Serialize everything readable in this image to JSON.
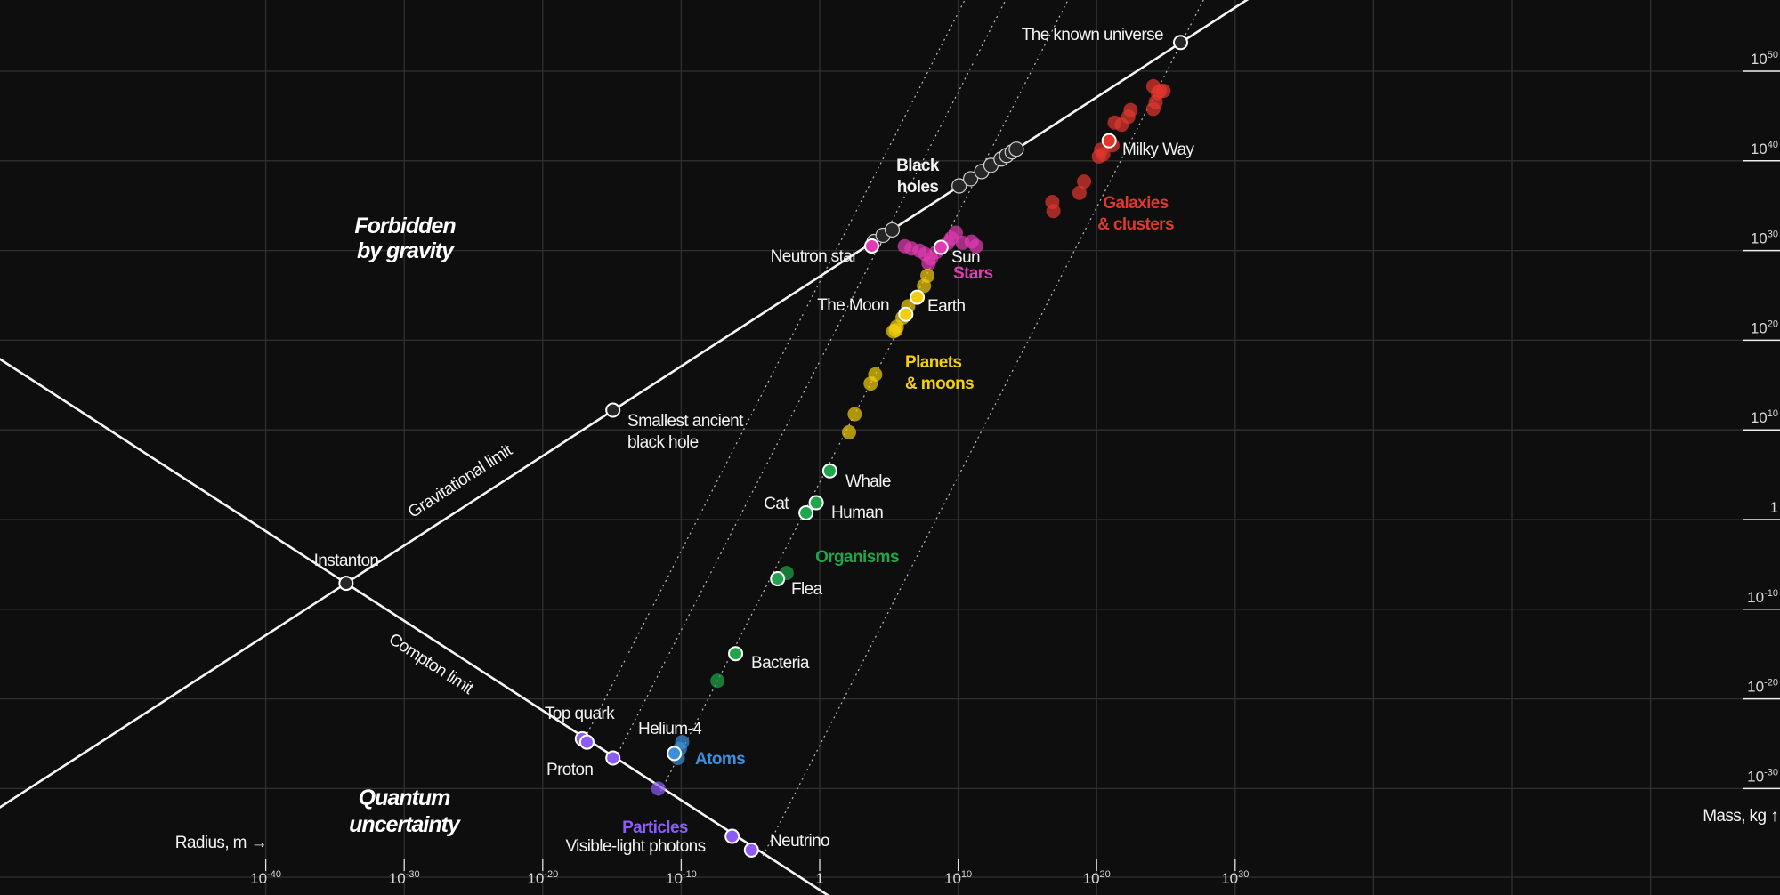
{
  "chart_data": {
    "type": "scatter",
    "scale": "log-log",
    "xlabel": "Radius, m →",
    "ylabel": "Mass, kg ↑",
    "xlim_log10": [
      -59.2,
      69.3
    ],
    "ylim_log10": [
      -42,
      58
    ],
    "grid": true,
    "x_ticks": [
      {
        "base": "10",
        "exp": "-40",
        "v": -40
      },
      {
        "base": "10",
        "exp": "-30",
        "v": -30
      },
      {
        "base": "10",
        "exp": "-20",
        "v": -20
      },
      {
        "base": "10",
        "exp": "-10",
        "v": -10
      },
      {
        "base": "1",
        "exp": "",
        "v": 0
      },
      {
        "base": "10",
        "exp": "10",
        "v": 10
      },
      {
        "base": "10",
        "exp": "20",
        "v": 20
      },
      {
        "base": "10",
        "exp": "30",
        "v": 30
      }
    ],
    "y_ticks": [
      {
        "base": "10",
        "exp": "50",
        "v": 50
      },
      {
        "base": "10",
        "exp": "40",
        "v": 40
      },
      {
        "base": "10",
        "exp": "30",
        "v": 30
      },
      {
        "base": "10",
        "exp": "20",
        "v": 20
      },
      {
        "base": "10",
        "exp": "10",
        "v": 10
      },
      {
        "base": "1",
        "exp": "",
        "v": 0
      },
      {
        "base": "10",
        "exp": "-10",
        "v": -10
      },
      {
        "base": "10",
        "exp": "-20",
        "v": -20
      },
      {
        "base": "10",
        "exp": "-30",
        "v": -30
      }
    ],
    "limits": {
      "gravitational": {
        "label": "Gravitational limit",
        "slope": 1,
        "intercept_log10": 27.1
      },
      "compton": {
        "label": "Compton limit",
        "slope": -1,
        "intercept_log10": -41.3
      }
    },
    "density_lines": [
      {
        "slope": 3,
        "intercept_log10": 26.5,
        "r_start_log10": -17.14
      },
      {
        "slope": 3,
        "intercept_log10": 17.65,
        "r_start_log10": -14.93
      },
      {
        "slope": 3,
        "intercept_log10": 4.15,
        "r_start_log10": -11.65
      },
      {
        "slope": 3,
        "intercept_log10": -25.2,
        "r_start_log10": -4.1
      }
    ],
    "series": [
      {
        "name": "Black holes",
        "color": "#262626",
        "stroke": "#d0d0d0",
        "points": [
          [
            3.93,
            31.0
          ],
          [
            4.58,
            31.7
          ],
          [
            5.24,
            32.3
          ],
          [
            10.07,
            37.2
          ],
          [
            10.9,
            38.0
          ],
          [
            11.7,
            38.8
          ],
          [
            12.37,
            39.5
          ],
          [
            13.1,
            40.2
          ],
          [
            13.5,
            40.6
          ],
          [
            13.9,
            41.0
          ],
          [
            14.2,
            41.3
          ]
        ],
        "highlighted": [
          [
            -34.2,
            -7.1
          ],
          [
            -14.93,
            12.2
          ],
          [
            26.06,
            53.2
          ]
        ]
      },
      {
        "name": "Stars",
        "color": "#e23cb4",
        "points": [
          [
            6.14,
            30.48
          ],
          [
            6.63,
            30.23
          ],
          [
            7.21,
            29.98
          ],
          [
            7.62,
            29.6
          ],
          [
            8.03,
            29.09
          ],
          [
            7.86,
            28.58
          ],
          [
            8.43,
            29.85
          ],
          [
            9.26,
            30.86
          ],
          [
            9.5,
            31.37
          ],
          [
            9.83,
            32.0
          ],
          [
            10.32,
            30.86
          ],
          [
            10.98,
            30.99
          ],
          [
            11.3,
            30.48
          ]
        ],
        "highlighted": [
          [
            3.76,
            30.5
          ],
          [
            8.76,
            30.36
          ]
        ]
      },
      {
        "name": "Planets & moons",
        "color": "#f2cf0a",
        "points": [
          [
            7.78,
            27.19
          ],
          [
            7.53,
            26.05
          ],
          [
            6.39,
            23.78
          ],
          [
            5.98,
            22.51
          ],
          [
            5.57,
            21.5
          ],
          [
            5.32,
            20.99
          ],
          [
            5.49,
            21.12
          ],
          [
            4.01,
            16.18
          ],
          [
            3.68,
            15.17
          ],
          [
            2.53,
            11.75
          ],
          [
            2.12,
            9.73
          ]
        ],
        "highlighted": [
          [
            7.04,
            24.79
          ],
          [
            6.22,
            22.89
          ]
        ]
      },
      {
        "name": "Organisms",
        "color": "#1fa64c",
        "points": [
          [
            -2.39,
            -5.96
          ],
          [
            -7.38,
            -17.98
          ]
        ],
        "highlighted": [
          [
            0.73,
            5.43
          ],
          [
            -0.25,
            1.88
          ],
          [
            -0.99,
            0.75
          ],
          [
            -3.04,
            -6.6
          ],
          [
            -6.07,
            -14.95
          ]
        ]
      },
      {
        "name": "Atoms",
        "color": "#3b8fdc",
        "points": [
          [
            -10.25,
            -26.59
          ],
          [
            -9.93,
            -24.81
          ],
          [
            -10.1,
            -25.57
          ]
        ],
        "highlighted": [
          [
            -10.5,
            -26.08
          ]
        ]
      },
      {
        "name": "Particles",
        "color": "#8b5cf6",
        "points": [
          [
            -11.65,
            -30.0
          ]
        ],
        "highlighted": [
          [
            -17.14,
            -24.44
          ],
          [
            -16.81,
            -24.82
          ],
          [
            -14.93,
            -26.59
          ],
          [
            -6.32,
            -35.32
          ],
          [
            -4.93,
            -36.84
          ]
        ]
      },
      {
        "name": "Galaxies & clusters",
        "color": "#e2362f",
        "points": [
          [
            24.09,
            48.32
          ],
          [
            24.42,
            47.56
          ],
          [
            24.58,
            47.82
          ],
          [
            24.83,
            47.82
          ],
          [
            24.26,
            46.55
          ],
          [
            24.09,
            45.79
          ],
          [
            22.45,
            45.67
          ],
          [
            22.29,
            44.91
          ],
          [
            21.3,
            44.27
          ],
          [
            21.8,
            44.02
          ],
          [
            21.14,
            41.74
          ],
          [
            20.32,
            41.24
          ],
          [
            20.16,
            40.48
          ],
          [
            20.48,
            40.73
          ],
          [
            19.09,
            37.69
          ],
          [
            18.76,
            36.43
          ],
          [
            16.8,
            35.42
          ],
          [
            16.88,
            34.4
          ]
        ],
        "highlighted": [
          [
            20.9,
            42.25
          ]
        ]
      }
    ]
  },
  "labels": {
    "known_universe": "The known universe",
    "black_holes_1": "Black",
    "black_holes_2": "holes",
    "forbidden_1": "Forbidden",
    "forbidden_2": "by gravity",
    "neutron_star": "Neutron star",
    "sun": "Sun",
    "stars": "Stars",
    "moon": "The Moon",
    "earth": "Earth",
    "milky_way": "Milky Way",
    "galaxies_1": "Galaxies",
    "galaxies_2": "& clusters",
    "planets_1": "Planets",
    "planets_2": "& moons",
    "smallest_bh_1": "Smallest ancient",
    "smallest_bh_2": "black hole",
    "grav_limit": "Gravitational limit",
    "compton_limit": "Compton limit",
    "instanton": "Instanton",
    "whale": "Whale",
    "human": "Human",
    "cat": "Cat",
    "organisms": "Organisms",
    "flea": "Flea",
    "bacteria": "Bacteria",
    "top_quark": "Top quark",
    "helium": "Helium-4",
    "atoms": "Atoms",
    "proton": "Proton",
    "quantum_1": "Quantum",
    "quantum_2": "uncertainty",
    "particles": "Particles",
    "photons": "Visible-light photons",
    "neutrino": "Neutrino",
    "radius_axis": "Radius, m →",
    "mass_axis": "Mass, kg ↑"
  }
}
